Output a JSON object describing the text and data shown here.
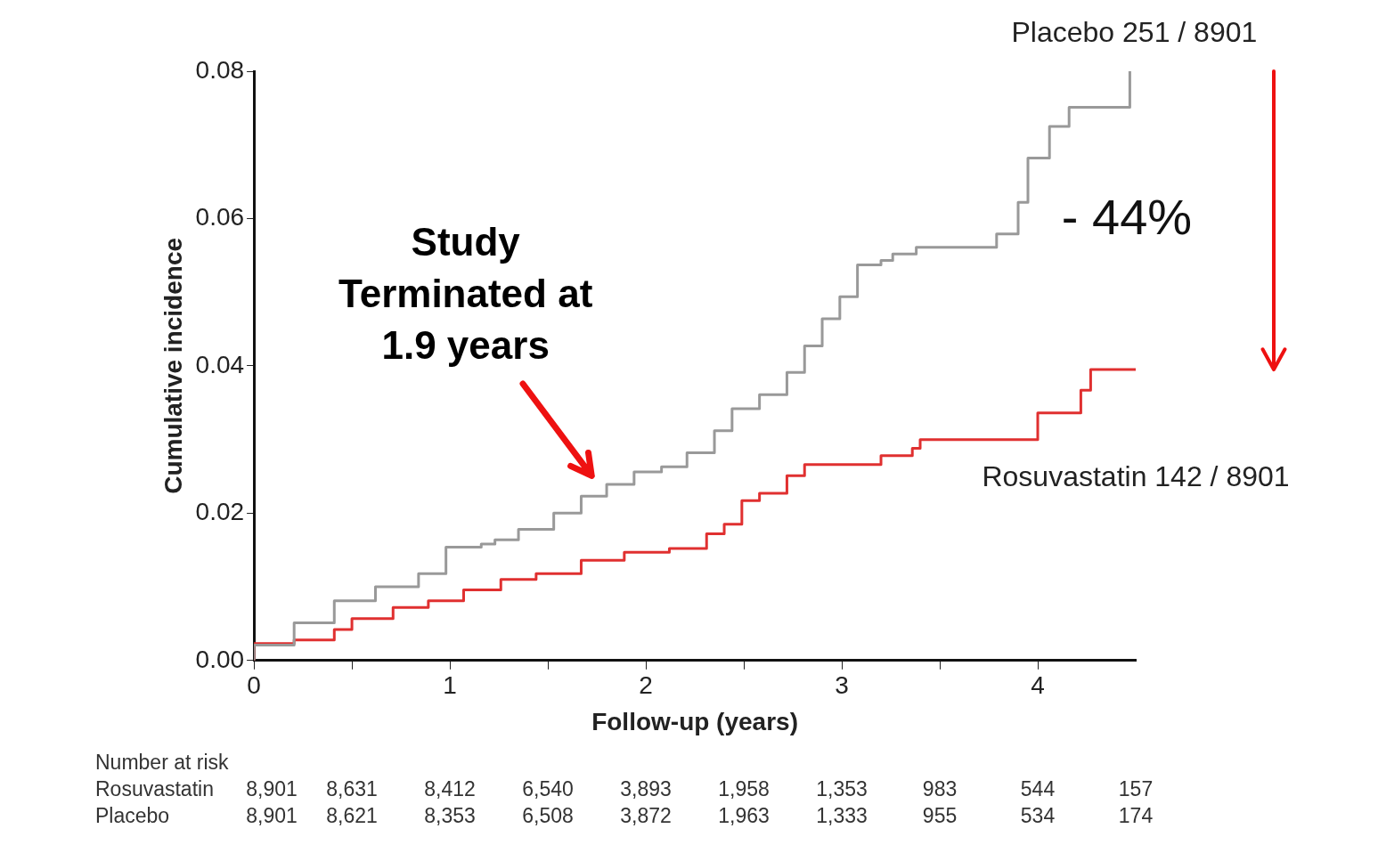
{
  "chart_data": {
    "type": "step",
    "xlabel": "Follow-up (years)",
    "ylabel": "Cumulative incidence",
    "xlim": [
      0,
      4.5
    ],
    "xticks": [
      0,
      {
        "value": 0.5,
        "label": null
      },
      1,
      {
        "value": 1.5,
        "label": null
      },
      2,
      {
        "value": 2.5,
        "label": null
      },
      3,
      {
        "value": 3.5,
        "label": null
      },
      4
    ],
    "ylim": [
      0,
      0.08
    ],
    "yticks": [
      {
        "value": 0,
        "label": "0.00"
      },
      {
        "value": 0.02,
        "label": "0.02"
      },
      {
        "value": 0.04,
        "label": "0.04"
      },
      {
        "value": 0.06,
        "label": "0.06"
      },
      {
        "value": 0.08,
        "label": "0.08"
      }
    ],
    "series": [
      {
        "name": "Placebo 251 / 8901",
        "color": "#999999",
        "x": [
          0,
          0.205,
          0.41,
          0.62,
          0.84,
          0.98,
          1.16,
          1.23,
          1.35,
          1.53,
          1.67,
          1.8,
          1.94,
          2.08,
          2.21,
          2.35,
          2.44,
          2.58,
          2.72,
          2.81,
          2.9,
          2.99,
          3.08,
          3.2,
          3.26,
          3.38,
          3.54,
          3.79,
          3.9,
          3.95,
          4.06,
          4.16,
          4.26,
          4.47,
          4.47
        ],
        "values": [
          0,
          0.0021,
          0.0051,
          0.0081,
          0.01,
          0.0118,
          0.0154,
          0.0158,
          0.0164,
          0.0178,
          0.02,
          0.0223,
          0.0239,
          0.0256,
          0.0263,
          0.0282,
          0.0312,
          0.0342,
          0.0361,
          0.0391,
          0.0427,
          0.0464,
          0.0494,
          0.0537,
          0.0543,
          0.0552,
          0.0561,
          0.0561,
          0.0579,
          0.0622,
          0.0682,
          0.0725,
          0.0751,
          0.0751,
          0.08
        ]
      },
      {
        "name": "Rosuvastatin 142 / 8901",
        "color": "#e03030",
        "x": [
          0,
          0.205,
          0.41,
          0.5,
          0.71,
          0.89,
          1.07,
          1.26,
          1.44,
          1.67,
          1.89,
          2.12,
          2.31,
          2.4,
          2.49,
          2.58,
          2.72,
          2.81,
          2.88,
          3.2,
          3.36,
          3.4,
          3.63,
          4.0,
          4.04,
          4.22,
          4.27,
          4.31,
          4.5
        ],
        "values": [
          0,
          0.0023,
          0.0028,
          0.0042,
          0.0057,
          0.0072,
          0.0081,
          0.0096,
          0.011,
          0.0118,
          0.0136,
          0.0147,
          0.0152,
          0.0172,
          0.0185,
          0.0217,
          0.0227,
          0.0251,
          0.0266,
          0.0266,
          0.0278,
          0.0288,
          0.03,
          0.03,
          0.0336,
          0.0336,
          0.0367,
          0.0395,
          0.0395
        ]
      }
    ],
    "annotations": [
      "Study Terminated at 1.9 years",
      "- 44%",
      "Number at risk",
      "Rosuvastatin",
      "8,901",
      "8,631",
      "8,412",
      "6,540",
      "3,893",
      "1,958",
      "1,353",
      "983",
      "544",
      "157",
      "Placebo",
      "8,901",
      "8,621",
      "8,353",
      "6,508",
      "3,872",
      "1,963",
      "1,333",
      "955",
      "534",
      "174"
    ]
  }
}
